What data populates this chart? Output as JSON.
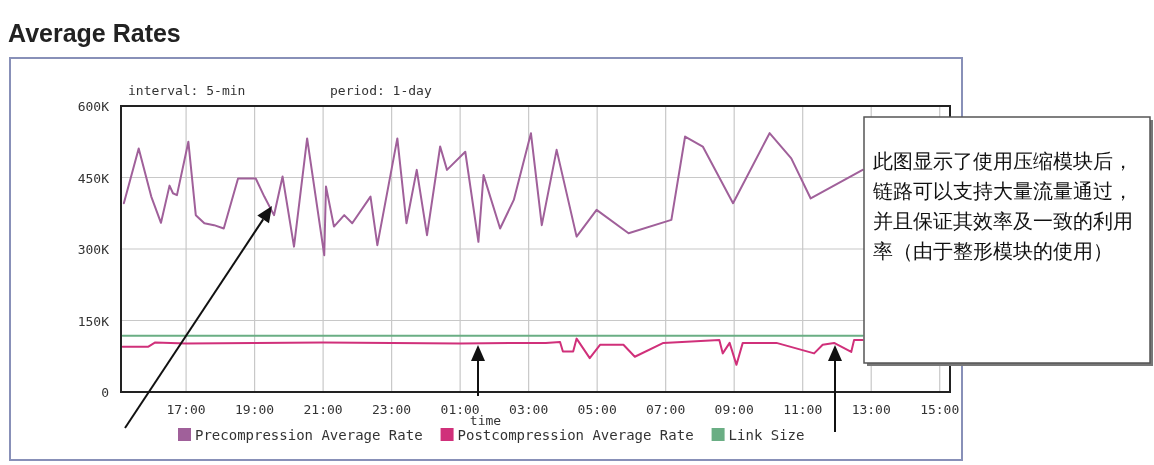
{
  "chart_data": {
    "type": "line",
    "title": "Average Rates",
    "xlabel": "time",
    "annotations": [
      "interval: 5-min",
      "period: 1-day",
      "此图显示了使用压缩模块后，链路可以支持大量流量通过，并且保证其效率及一致的利用率（由于整形模块的使用）"
    ],
    "xlim": [
      "2000-01-01T15:06",
      "2000-01-02T15:18"
    ],
    "ylim": [
      0,
      600000
    ],
    "xticks": [
      {
        "value": "2000-01-01T17:00",
        "label": "17:00"
      },
      {
        "value": "2000-01-01T19:00",
        "label": "19:00"
      },
      {
        "value": "2000-01-01T21:00",
        "label": "21:00"
      },
      {
        "value": "2000-01-01T23:00",
        "label": "23:00"
      },
      {
        "value": "2000-01-02T01:00",
        "label": "01:00"
      },
      {
        "value": "2000-01-02T03:00",
        "label": "03:00"
      },
      {
        "value": "2000-01-02T05:00",
        "label": "05:00"
      },
      {
        "value": "2000-01-02T07:00",
        "label": "07:00"
      },
      {
        "value": "2000-01-02T09:00",
        "label": "09:00"
      },
      {
        "value": "2000-01-02T11:00",
        "label": "11:00"
      },
      {
        "value": "2000-01-02T13:00",
        "label": "13:00"
      },
      {
        "value": "2000-01-02T15:00",
        "label": "15:00"
      }
    ],
    "yticks": [
      0,
      {
        "value": 150000,
        "label": "150K"
      },
      {
        "value": 300000,
        "label": "300K"
      },
      {
        "value": 450000,
        "label": "450K"
      },
      {
        "value": 600000,
        "label": "600K"
      }
    ],
    "grid": true,
    "legend": "bottom",
    "series": [
      {
        "name": "Precompression Average Rate",
        "color": "#a0609a",
        "x": [
          "2000-01-01T15:11",
          "2000-01-01T15:37",
          "2000-01-01T15:59",
          "2000-01-01T16:16",
          "2000-01-01T16:31",
          "2000-01-01T16:37",
          "2000-01-01T16:44",
          "2000-01-01T17:04",
          "2000-01-01T17:17",
          "2000-01-01T17:32",
          "2000-01-01T17:49",
          "2000-01-01T18:06",
          "2000-01-01T18:31",
          "2000-01-01T19:02",
          "2000-01-01T19:17",
          "2000-01-01T19:34",
          "2000-01-01T19:49",
          "2000-01-01T20:09",
          "2000-01-01T20:32",
          "2000-01-01T21:02",
          "2000-01-01T21:05",
          "2000-01-01T21:19",
          "2000-01-01T21:37",
          "2000-01-01T21:51",
          "2000-01-01T22:23",
          "2000-01-01T22:35",
          "2000-01-01T23:10",
          "2000-01-01T23:26",
          "2000-01-01T23:44",
          "2000-01-02T00:02",
          "2000-01-02T00:25",
          "2000-01-02T00:37",
          "2000-01-02T01:09",
          "2000-01-02T01:32",
          "2000-01-02T01:41",
          "2000-01-02T02:10",
          "2000-01-02T02:34",
          "2000-01-02T03:04",
          "2000-01-02T03:23",
          "2000-01-02T03:49",
          "2000-01-02T04:24",
          "2000-01-02T04:59",
          "2000-01-02T05:55",
          "2000-01-02T07:10",
          "2000-01-02T07:34",
          "2000-01-02T08:05",
          "2000-01-02T08:58",
          "2000-01-02T10:02",
          "2000-01-02T10:40",
          "2000-01-02T11:14",
          "2000-01-02T12:45"
        ],
        "values": [
          396000,
          511000,
          410000,
          355000,
          433000,
          417000,
          413000,
          525000,
          371000,
          354000,
          350000,
          343000,
          448000,
          448000,
          410000,
          371000,
          452000,
          305000,
          532000,
          287000,
          431000,
          347000,
          371000,
          354000,
          410000,
          308000,
          532000,
          354000,
          466000,
          329000,
          515000,
          466000,
          504000,
          315000,
          455000,
          343000,
          403000,
          543000,
          350000,
          508000,
          326000,
          382000,
          333000,
          361000,
          536000,
          515000,
          396000,
          543000,
          490000,
          406000,
          466000
        ]
      },
      {
        "name": "Postcompression Average Rate",
        "color": "#d0307a",
        "x": [
          "2000-01-01T15:09",
          "2000-01-01T15:54",
          "2000-01-01T16:06",
          "2000-01-01T17:00",
          "2000-01-01T19:00",
          "2000-01-01T21:00",
          "2000-01-01T23:00",
          "2000-01-02T01:00",
          "2000-01-02T03:30",
          "2000-01-02T03:55",
          "2000-01-02T04:00",
          "2000-01-02T04:18",
          "2000-01-02T04:24",
          "2000-01-02T04:47",
          "2000-01-02T05:05",
          "2000-01-02T05:46",
          "2000-01-02T06:06",
          "2000-01-02T06:56",
          "2000-01-02T08:34",
          "2000-01-02T08:40",
          "2000-01-02T08:52",
          "2000-01-02T09:04",
          "2000-01-02T09:15",
          "2000-01-02T10:14",
          "2000-01-02T11:20",
          "2000-01-02T11:35",
          "2000-01-02T11:55",
          "2000-01-02T12:25",
          "2000-01-02T12:30",
          "2000-01-02T12:45"
        ],
        "values": [
          95000,
          95000,
          104000,
          102000,
          103000,
          104000,
          103000,
          102000,
          103000,
          105000,
          85000,
          85000,
          112000,
          71000,
          99000,
          99000,
          74000,
          103000,
          109000,
          81000,
          103000,
          57000,
          103000,
          103000,
          81000,
          99000,
          103000,
          84000,
          109000,
          109000
        ]
      },
      {
        "name": "Link Size",
        "color": "#6aae84",
        "x": [
          "2000-01-01T15:09",
          "2000-01-02T12:45"
        ],
        "values": [
          118000,
          118000
        ]
      }
    ]
  }
}
